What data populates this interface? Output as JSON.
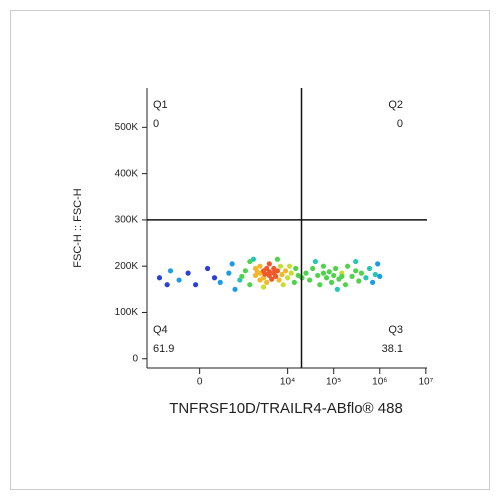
{
  "chart_data": {
    "type": "scatter",
    "xlabel": "TNFRSF10D/TRAILR4-ABflo® 488",
    "ylabel": "FSC-H :: FSC-H",
    "xscale": "biexponential",
    "xlim": [
      -1700,
      10600000
    ],
    "ylim": [
      -20000,
      585000
    ],
    "xticks": [
      0,
      {
        "value": 10000,
        "label": "10⁴"
      },
      {
        "value": 100000,
        "label": "10⁵"
      },
      {
        "value": 1000000,
        "label": "10⁶"
      },
      {
        "value": 10000000,
        "label": "10⁷"
      }
    ],
    "yticks": [
      0,
      {
        "value": 100000,
        "label": "100K"
      },
      {
        "value": 200000,
        "label": "200K"
      },
      {
        "value": 300000,
        "label": "300K"
      },
      {
        "value": 400000,
        "label": "400K"
      },
      {
        "value": 500000,
        "label": "500K"
      }
    ],
    "gate": {
      "x": 20000,
      "y": 300000
    },
    "quadrants": [
      {
        "name": "Q1",
        "value": 0,
        "corner": "top-left"
      },
      {
        "name": "Q2",
        "value": 0,
        "corner": "top-right"
      },
      {
        "name": "Q3",
        "value": 38.1,
        "corner": "bottom-right"
      },
      {
        "name": "Q4",
        "value": 61.9,
        "corner": "bottom-left"
      }
    ],
    "points": {
      "x": [
        -900,
        -600,
        -500,
        -300,
        -150,
        -50,
        100,
        200,
        300,
        500,
        600,
        900,
        1200,
        1500,
        1500,
        2000,
        2000,
        2500,
        2500,
        2500,
        3000,
        3000,
        3200,
        3500,
        3500,
        4000,
        4000,
        4000,
        4500,
        5000,
        5000,
        5500,
        6000,
        6500,
        7000,
        7500,
        8000,
        9000,
        10000,
        11000,
        12000,
        14000,
        15000,
        17000,
        700,
        1800,
        3000,
        6000,
        1000,
        2200,
        25000,
        30000,
        35000,
        45000,
        50000,
        60000,
        70000,
        80000,
        90000,
        100000,
        110000,
        130000,
        150000,
        180000,
        200000,
        250000,
        300000,
        350000,
        400000,
        500000,
        600000,
        700000,
        800000,
        900000,
        1000000,
        40000,
        120000,
        300000,
        20500,
        60000,
        150000
      ],
      "y": [
        175000,
        160000,
        190000,
        170000,
        185000,
        160000,
        195000,
        175000,
        165000,
        185000,
        205000,
        170000,
        190000,
        160000,
        210000,
        180000,
        195000,
        170000,
        185000,
        200000,
        175000,
        190000,
        183000,
        165000,
        195000,
        180000,
        188000,
        205000,
        172000,
        185000,
        195000,
        178000,
        190000,
        170000,
        200000,
        182000,
        160000,
        190000,
        175000,
        200000,
        185000,
        165000,
        195000,
        180000,
        150000,
        215000,
        155000,
        215000,
        178000,
        188000,
        185000,
        170000,
        195000,
        180000,
        160000,
        200000,
        175000,
        188000,
        165000,
        180000,
        195000,
        172000,
        185000,
        160000,
        200000,
        178000,
        190000,
        168000,
        185000,
        175000,
        195000,
        165000,
        182000,
        205000,
        178000,
        210000,
        150000,
        210000,
        175000,
        185000,
        178000
      ]
    }
  }
}
